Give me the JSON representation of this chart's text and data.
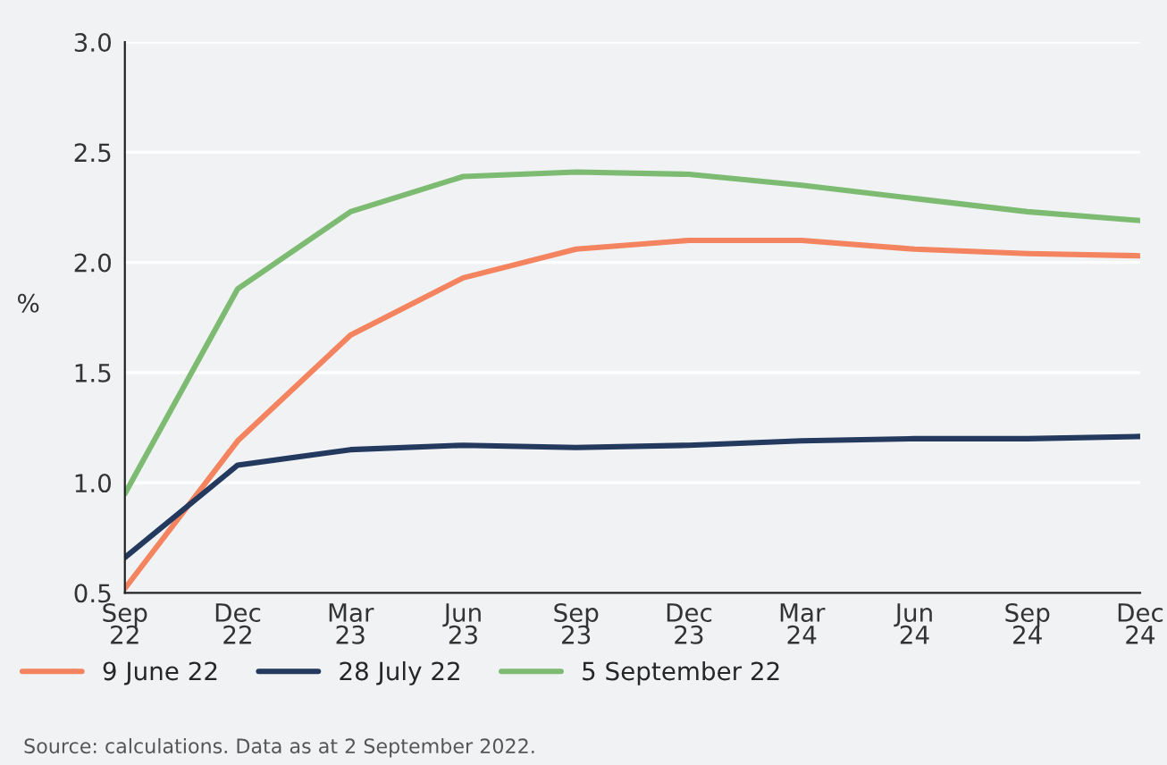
{
  "chart_data": {
    "type": "line",
    "ylabel": "%",
    "categories": [
      "Sep\n22",
      "Dec\n22",
      "Mar\n23",
      "Jun\n23",
      "Sep\n23",
      "Dec\n23",
      "Mar\n24",
      "Jun\n24",
      "Sep\n24",
      "Dec\n24"
    ],
    "series": [
      {
        "name": "9 June 22",
        "color": "#f4845f",
        "values": [
          0.52,
          1.19,
          1.67,
          1.93,
          2.06,
          2.1,
          2.1,
          2.06,
          2.04,
          2.03
        ]
      },
      {
        "name": "28 July 22",
        "color": "#233a5e",
        "values": [
          0.66,
          1.08,
          1.15,
          1.17,
          1.16,
          1.17,
          1.19,
          1.2,
          1.2,
          1.21
        ]
      },
      {
        "name": "5 September 22",
        "color": "#7dbb72",
        "values": [
          0.95,
          1.88,
          2.23,
          2.39,
          2.41,
          2.4,
          2.35,
          2.29,
          2.23,
          2.19
        ]
      }
    ],
    "ylim": [
      0.5,
      3.0
    ],
    "yticks": [
      {
        "value": 0.5,
        "label": "0.5"
      },
      {
        "value": 1.0,
        "label": "1.0"
      },
      {
        "value": 1.5,
        "label": "1.5"
      },
      {
        "value": 2.0,
        "label": "2.0"
      },
      {
        "value": 2.5,
        "label": "2.5"
      },
      {
        "value": 3.0,
        "label": "3.0"
      }
    ],
    "grid": "y",
    "legend": "bottom",
    "line_style": "solid",
    "annotations": [
      "Source: calculations. Data as at 2 September 2022."
    ]
  }
}
